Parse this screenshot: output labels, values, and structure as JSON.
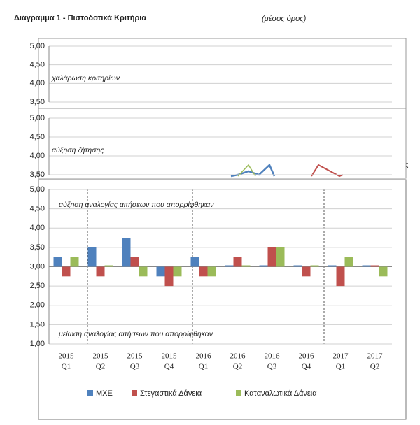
{
  "header": {
    "title": "Διάγραμμα 1 - Πιστοδοτικά Κριτήρια",
    "subtitle": "(μέσος όρος)",
    "fragment": "ος"
  },
  "chart_data": [
    {
      "type": "line",
      "annotation": "χαλάρωση κριτηρίων",
      "ylim": [
        3.5,
        5
      ],
      "yticks": [
        {
          "value": 5,
          "label": "5,00"
        },
        {
          "value": 4.5,
          "label": "4,50"
        },
        {
          "value": 4,
          "label": "4,00"
        },
        {
          "value": 3.5,
          "label": "3,50"
        }
      ]
    },
    {
      "type": "line",
      "annotation": "αύξηση ζήτησης",
      "ylim": [
        3.5,
        5
      ],
      "yticks": [
        {
          "value": 5,
          "label": "5,00"
        },
        {
          "value": 4.5,
          "label": "4,50"
        },
        {
          "value": 4,
          "label": "4,00"
        },
        {
          "value": 3.5,
          "label": "3,50"
        }
      ]
    },
    {
      "type": "bar",
      "annotation_top": "αύξηση αναλογίας αιτήσεων που απορρίφθηκαν",
      "annotation_bottom": "μείωση αναλογίας αιτήσεων που απορρίφθηκαν",
      "categories": [
        [
          "2015",
          "Q1"
        ],
        [
          "2015",
          "Q2"
        ],
        [
          "2015",
          "Q3"
        ],
        [
          "2015",
          "Q4"
        ],
        [
          "2016",
          "Q1"
        ],
        [
          "2016",
          "Q2"
        ],
        [
          "2016",
          "Q3"
        ],
        [
          "2016",
          "Q4"
        ],
        [
          "2017",
          "Q1"
        ],
        [
          "2017",
          "Q2"
        ]
      ],
      "series": [
        {
          "name": "ΜΧΕ",
          "color": "#4f81bd",
          "values": [
            3.25,
            3.5,
            3.75,
            2.75,
            3.25,
            3.0,
            3.0,
            3.0,
            3.0,
            3.0
          ]
        },
        {
          "name": "Στεγαστικά Δάνεια",
          "color": "#c0504d",
          "values": [
            2.75,
            2.75,
            3.25,
            2.5,
            2.75,
            3.25,
            3.5,
            2.75,
            2.5,
            3.0
          ]
        },
        {
          "name": "Καταναλωτικά Δάνεια",
          "color": "#9bbb59",
          "values": [
            3.25,
            3.0,
            2.75,
            2.75,
            2.75,
            3.0,
            3.5,
            3.0,
            3.25,
            2.75
          ]
        }
      ],
      "x_axis_crosses": 3,
      "ylim": [
        1,
        5
      ],
      "yticks": [
        {
          "value": 5,
          "label": "5,00"
        },
        {
          "value": 4.5,
          "label": "4,50"
        },
        {
          "value": 4,
          "label": "4,00"
        },
        {
          "value": 3.5,
          "label": "3,50"
        },
        {
          "value": 3,
          "label": "3,00"
        },
        {
          "value": 2.5,
          "label": "2,50"
        },
        {
          "value": 2,
          "label": "2,00"
        },
        {
          "value": 1.5,
          "label": "1,50"
        },
        {
          "value": 1,
          "label": "1,00"
        }
      ],
      "grid": true
    }
  ]
}
